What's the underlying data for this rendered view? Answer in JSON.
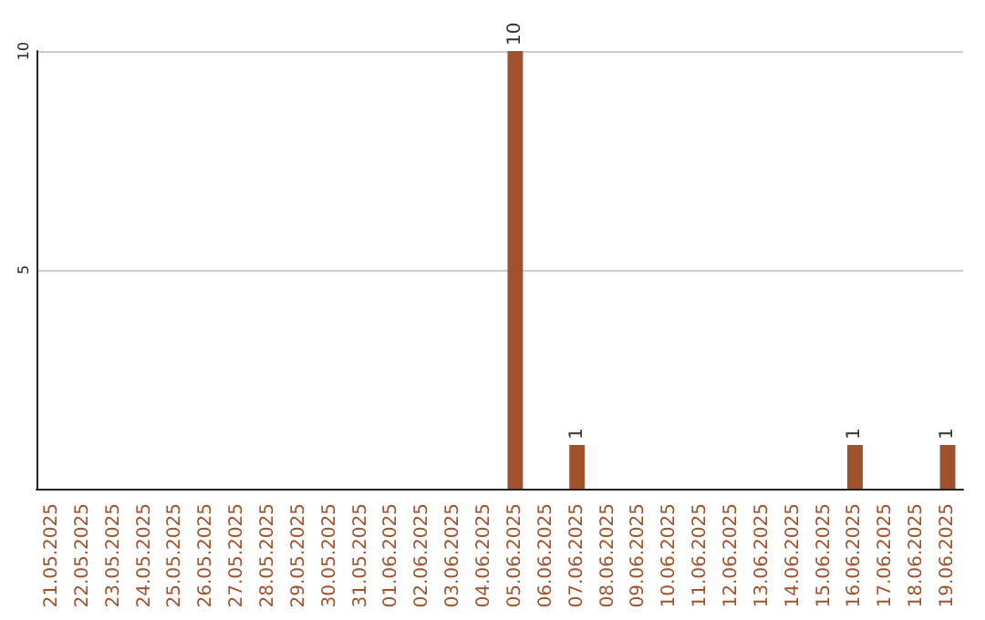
{
  "chart_data": {
    "type": "bar",
    "categories": [
      "21.05.2025",
      "22.05.2025",
      "23.05.2025",
      "24.05.2025",
      "25.05.2025",
      "26.05.2025",
      "27.05.2025",
      "28.05.2025",
      "29.05.2025",
      "30.05.2025",
      "31.05.2025",
      "01.06.2025",
      "02.06.2025",
      "03.06.2025",
      "04.06.2025",
      "05.06.2025",
      "06.06.2025",
      "07.06.2025",
      "08.06.2025",
      "09.06.2025",
      "10.06.2025",
      "11.06.2025",
      "12.06.2025",
      "13.06.2025",
      "14.06.2025",
      "15.06.2025",
      "16.06.2025",
      "17.06.2025",
      "18.06.2025",
      "19.06.2025"
    ],
    "values": [
      0,
      0,
      0,
      0,
      0,
      0,
      0,
      0,
      0,
      0,
      0,
      0,
      0,
      0,
      0,
      10,
      0,
      1,
      0,
      0,
      0,
      0,
      0,
      0,
      0,
      0,
      1,
      0,
      0,
      1
    ],
    "value_labels": [
      null,
      null,
      null,
      null,
      null,
      null,
      null,
      null,
      null,
      null,
      null,
      null,
      null,
      null,
      null,
      "10",
      null,
      "1",
      null,
      null,
      null,
      null,
      null,
      null,
      null,
      null,
      "1",
      null,
      null,
      "1"
    ],
    "color": "#a0522d",
    "ylim": [
      0,
      10
    ],
    "yticks": [
      5,
      10
    ],
    "grid": "y"
  }
}
